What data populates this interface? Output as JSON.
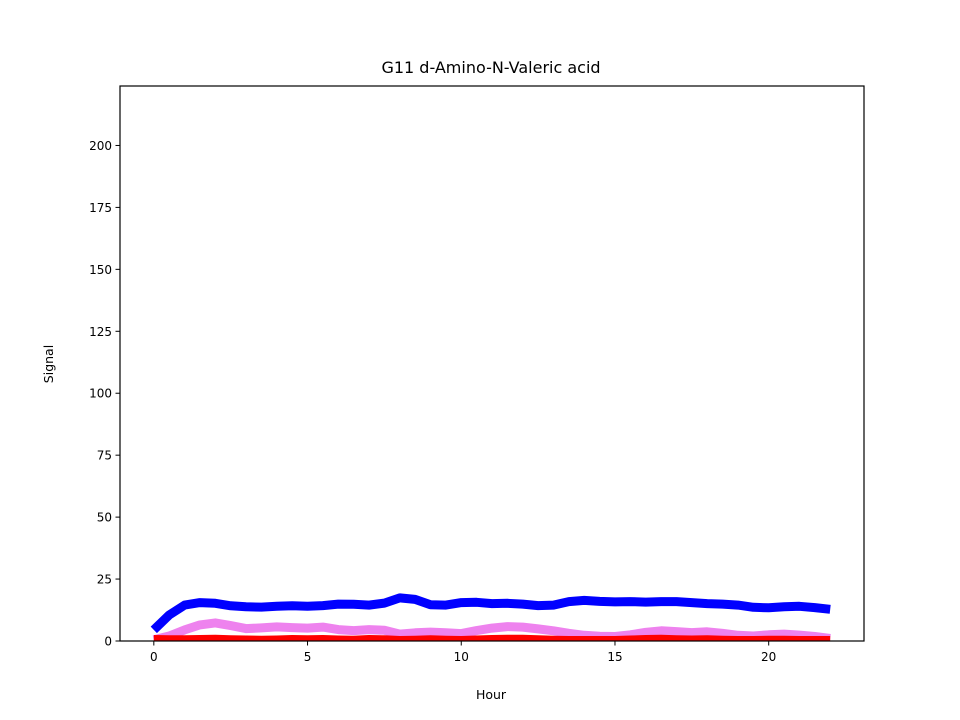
{
  "chart_data": {
    "type": "line",
    "title": "G11 d-Amino-N-Valeric acid",
    "xlabel": "Hour",
    "ylabel": "Signal",
    "xlim": [
      -1.1,
      23.1
    ],
    "ylim": [
      0,
      224
    ],
    "xticks": [
      0,
      5,
      10,
      15,
      20
    ],
    "yticks": [
      0,
      25,
      50,
      75,
      100,
      125,
      150,
      175,
      200
    ],
    "grid": false,
    "x": [
      0,
      0.5,
      1,
      1.5,
      2,
      2.5,
      3,
      3.5,
      4,
      4.5,
      5,
      5.5,
      6,
      6.5,
      7,
      7.5,
      8,
      8.5,
      9,
      9.5,
      10,
      10.5,
      11,
      11.5,
      12,
      12.5,
      13,
      13.5,
      14,
      14.5,
      15,
      15.5,
      16,
      16.5,
      17,
      17.5,
      18,
      18.5,
      19,
      19.5,
      20,
      20.5,
      21,
      21.5,
      22
    ],
    "series": [
      {
        "color": "#0000ff",
        "values": [
          4.5,
          10.5,
          14.5,
          15.5,
          15.2,
          14.2,
          13.8,
          13.7,
          14.0,
          14.2,
          14.0,
          14.3,
          14.9,
          14.8,
          14.5,
          15.3,
          17.4,
          16.8,
          14.6,
          14.5,
          15.5,
          15.6,
          15.1,
          15.2,
          14.9,
          14.3,
          14.5,
          15.9,
          16.4,
          16.0,
          15.8,
          15.9,
          15.7,
          15.9,
          15.9,
          15.5,
          15.1,
          14.9,
          14.5,
          13.6,
          13.4,
          13.8,
          14.0,
          13.5,
          12.8
        ]
      },
      {
        "color": "#ee82ee",
        "values": [
          0.5,
          2.0,
          4.5,
          6.5,
          7.3,
          6.2,
          5.0,
          5.3,
          5.7,
          5.4,
          5.2,
          5.6,
          4.6,
          4.2,
          4.6,
          4.3,
          2.8,
          3.3,
          3.6,
          3.3,
          3.0,
          4.2,
          5.2,
          5.8,
          5.6,
          4.9,
          4.1,
          3.1,
          2.3,
          1.9,
          1.8,
          2.5,
          3.5,
          4.1,
          3.8,
          3.4,
          3.7,
          3.1,
          2.3,
          2.0,
          2.5,
          2.8,
          2.4,
          1.8,
          1.0
        ]
      },
      {
        "color": "#ff0000",
        "values": [
          0.6,
          0.5,
          0.5,
          0.6,
          0.7,
          0.5,
          0.4,
          0.3,
          0.4,
          0.6,
          0.5,
          0.6,
          0.4,
          0.3,
          0.6,
          0.5,
          0.2,
          0.3,
          0.5,
          0.3,
          0.2,
          0.4,
          0.6,
          0.7,
          0.7,
          0.5,
          0.3,
          0.2,
          0.2,
          0.2,
          0.2,
          0.4,
          0.6,
          0.7,
          0.5,
          0.4,
          0.5,
          0.3,
          0.2,
          0.2,
          0.3,
          0.3,
          0.2,
          0.2,
          0.2
        ]
      }
    ]
  }
}
